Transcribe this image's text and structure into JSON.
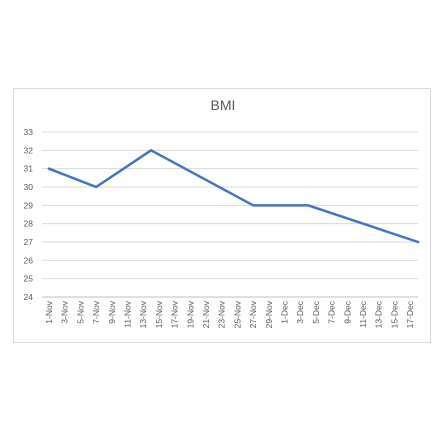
{
  "chart_data": {
    "type": "line",
    "title": "BMI",
    "xlabel": "",
    "ylabel": "",
    "ylim": [
      24,
      33
    ],
    "ytick_step": 1,
    "grid": true,
    "legend": "none",
    "line_color": "#4472c4",
    "x_tick_labels": [
      "1-Nov",
      "3-Nov",
      "5-Nov",
      "7-Nov",
      "9-Nov",
      "11-Nov",
      "13-Nov",
      "15-Nov",
      "17-Nov",
      "19-Nov",
      "21-Nov",
      "23-Nov",
      "25-Nov",
      "27-Nov",
      "29-Nov",
      "1-Dec",
      "3-Dec",
      "5-Dec",
      "7-Dec",
      "9-Dec",
      "11-Dec",
      "13-Dec",
      "15-Dec",
      "17-Dec"
    ],
    "x": [
      "1-Nov",
      "7-Nov",
      "14-Nov",
      "27-Nov",
      "4-Dec",
      "18-Dec"
    ],
    "values": [
      31,
      30,
      32,
      29,
      29,
      27
    ]
  }
}
